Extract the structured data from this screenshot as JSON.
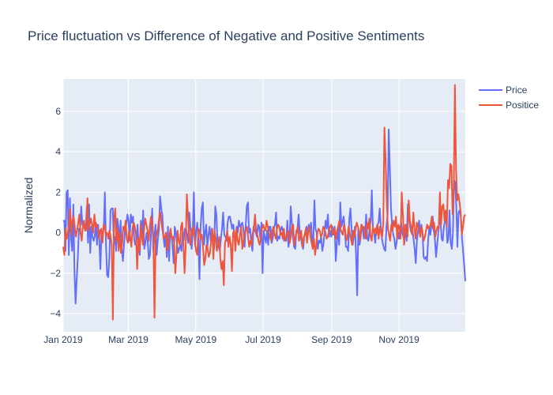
{
  "chart_data": {
    "type": "line",
    "title": "Price fluctuation vs Difference of Negative and Positive Sentiments",
    "xlabel": "",
    "ylabel": "Normalized",
    "x_start": "2019-01-01",
    "x_end": "2019-12-31",
    "xlim": [
      "2019-01-01",
      "2019-12-31"
    ],
    "ylim": [
      -4.9,
      7.6
    ],
    "x_ticks": [
      {
        "date": "2019-01-01",
        "label": "Jan 2019"
      },
      {
        "date": "2019-03-01",
        "label": "Mar 2019"
      },
      {
        "date": "2019-05-01",
        "label": "May 2019"
      },
      {
        "date": "2019-07-01",
        "label": "Jul 2019"
      },
      {
        "date": "2019-09-01",
        "label": "Sep 2019"
      },
      {
        "date": "2019-11-01",
        "label": "Nov 2019"
      }
    ],
    "y_ticks": [
      -4,
      -2,
      0,
      2,
      4,
      6
    ],
    "y_tick_labels": [
      "−4",
      "−2",
      "0",
      "2",
      "4",
      "6"
    ],
    "grid": true,
    "legend_position": "top-right",
    "plot_background": "#e5ecf6",
    "series": [
      {
        "name": "Price",
        "color": "#636efa",
        "values": [
          0.55,
          0.6,
          -0.9,
          2.0,
          2.1,
          -1.1,
          1.7,
          -0.3,
          -0.9,
          1.4,
          -1.9,
          -3.5,
          -2.3,
          -1.2,
          0.2,
          0.1,
          1.3,
          0.4,
          0.5,
          0.2,
          0.1,
          1.3,
          -0.5,
          1.4,
          -1.0,
          0.3,
          -0.2,
          -0.4,
          -0.2,
          0.5,
          -0.6,
          0.4,
          -0.3,
          -1.8,
          0.0,
          -0.1,
          0.2,
          2.0,
          -0.6,
          -2.1,
          -2.2,
          -1.2,
          1.1,
          1.2,
          1.2,
          -0.6,
          -0.2,
          -0.9,
          0.7,
          0.3,
          -0.5,
          0.6,
          -0.8,
          -1.4,
          -0.6,
          0.2,
          0.4,
          0.9,
          0.6,
          -0.4,
          0.9,
          0.5,
          0.8,
          -0.3,
          -0.6,
          -0.5,
          0.4,
          -0.7,
          -1.1,
          0.6,
          -0.2,
          1.1,
          -0.8,
          -0.5,
          0.0,
          -0.4,
          -1.3,
          -1.1,
          0.0,
          1.2,
          -0.9,
          -0.2,
          0.4,
          -1.1,
          -0.3,
          0.1,
          1.8,
          1.2,
          0.9,
          -0.2,
          -0.7,
          0.0,
          -1.2,
          0.3,
          -1.4,
          0.1,
          -0.1,
          -0.6,
          -1.5,
          0.3,
          0.0,
          -0.5,
          -1.0,
          -0.8,
          -0.6,
          -0.9,
          0.0,
          -0.4,
          0.2,
          0.2,
          -0.1,
          -0.5,
          1.0,
          0.2,
          -0.8,
          0.0,
          2.0,
          -0.6,
          0.0,
          0.5,
          -0.3,
          -2.3,
          0.3,
          1.2,
          1.5,
          -0.6,
          0.0,
          0.4,
          -0.7,
          -0.1,
          0.3,
          -0.4,
          0.2,
          -0.2,
          -0.8,
          1.3,
          0.9,
          -0.5,
          -0.6,
          -0.9,
          -0.3,
          0.2,
          1.0,
          -0.1,
          -0.2,
          -0.4,
          0.5,
          0.8,
          0.8,
          0.5,
          0.2,
          0.4,
          -0.2,
          -0.4,
          0.3,
          0.0,
          0.6,
          0.3,
          0.4,
          0.5,
          0.2,
          -0.7,
          0.3,
          1.3,
          1.5,
          0.0,
          0.2,
          -0.5,
          -0.9,
          0.3,
          0.1,
          0.0,
          -0.2,
          0.4,
          0.3,
          -0.3,
          0.5,
          -2.0,
          0.1,
          -0.2,
          -0.5,
          0.1,
          -0.6,
          0.3,
          0.3,
          -0.5,
          -0.3,
          0.2,
          0.4,
          1.0,
          -0.4,
          -0.2,
          -0.3,
          0.1,
          0.3,
          0.1,
          -0.4,
          -0.2,
          -0.4,
          0.6,
          -0.7,
          -0.3,
          1.3,
          0.5,
          -0.2,
          -0.7,
          -0.8,
          0.1,
          0.2,
          0.9,
          0.0,
          -0.2,
          -0.6,
          -0.8,
          -0.2,
          0.0,
          0.3,
          -0.1,
          0.4,
          0.1,
          0.5,
          -0.3,
          -0.6,
          1.6,
          0.2,
          0.0,
          -0.8,
          -0.4,
          -0.5,
          -0.2,
          -0.9,
          -0.6,
          0.0,
          0.6,
          0.2,
          0.9,
          -0.2,
          0.1,
          -0.2,
          0.3,
          -0.1,
          0.3,
          -1.4,
          -0.5,
          0.3,
          -0.6,
          1.5,
          0.3,
          0.5,
          0.8,
          0.2,
          -0.7,
          -0.7,
          -0.9,
          0.7,
          1.2,
          0.2,
          -0.6,
          -0.2,
          0.3,
          -1.1,
          -3.1,
          0.2,
          -0.6,
          -0.3,
          0.4,
          0.1,
          -0.3,
          0.0,
          0.9,
          -0.3,
          -0.4,
          0.2,
          0.6,
          2.1,
          0.1,
          0.0,
          -0.5,
          0.2,
          0.4,
          0.5,
          1.2,
          0.3,
          -0.3,
          -0.6,
          -0.8,
          -0.9,
          0.3,
          0.9,
          5.1,
          3.2,
          1.2,
          0.4,
          -0.1,
          -0.3,
          -0.8,
          -0.5,
          0.1,
          -0.3,
          0.2,
          0.5,
          0.0,
          -0.2,
          -0.5,
          0.4,
          -0.4,
          1.4,
          1.1,
          0.3,
          0.0,
          0.2,
          -0.3,
          -0.8,
          -1.5,
          -0.4,
          0.1,
          0.6,
          -0.2,
          0.4,
          0.0,
          -1.2,
          -1.3,
          -1.2,
          -1.4,
          -0.4,
          0.3,
          -0.1,
          0.4,
          0.8,
          0.1,
          -0.3,
          -1.2,
          -0.6,
          0.0,
          0.7,
          0.5,
          -0.3,
          -0.4,
          0.3,
          0.6,
          0.9,
          -0.5,
          -0.3,
          1.1,
          -0.5,
          -0.8,
          0.0,
          2.6,
          2.5,
          1.3,
          -0.7,
          1.0,
          1.1,
          0.8,
          -0.2,
          -0.9,
          -1.6,
          -2.4
        ]
      },
      {
        "name": "Positice",
        "color": "#ef553b",
        "values": [
          -0.7,
          -1.1,
          0.2,
          -0.3,
          0.0,
          0.4,
          1.2,
          -0.1,
          0.6,
          0.8,
          0.3,
          -0.2,
          0.1,
          0.5,
          0.9,
          0.0,
          -0.4,
          0.3,
          0.6,
          0.1,
          0.2,
          1.7,
          0.1,
          0.4,
          0.7,
          0.4,
          0.0,
          0.9,
          0.3,
          0.4,
          0.2,
          -0.3,
          0.1,
          0.2,
          -0.5,
          0.4,
          0.3,
          -0.1,
          0.0,
          -0.3,
          0.1,
          -0.2,
          -0.6,
          -4.3,
          0.6,
          1.2,
          -0.4,
          0.2,
          -0.9,
          0.0,
          -1.0,
          -0.6,
          0.3,
          0.1,
          0.6,
          -0.3,
          -0.5,
          0.1,
          -0.2,
          -0.7,
          0.2,
          0.5,
          0.3,
          -0.1,
          -1.8,
          -0.3,
          -0.9,
          0.4,
          -0.2,
          -0.6,
          0.2,
          0.7,
          0.4,
          0.1,
          -0.4,
          0.3,
          0.8,
          0.5,
          -0.1,
          -4.2,
          -0.3,
          -0.1,
          0.2,
          0.7,
          1.0,
          0.5,
          0.1,
          -0.3,
          -0.2,
          0.0,
          -0.9,
          -0.6,
          -0.1,
          0.2,
          -0.3,
          -0.2,
          -0.5,
          -2.0,
          -1.1,
          0.1,
          -0.4,
          -0.6,
          0.3,
          0.5,
          -0.5,
          -2.0,
          -0.7,
          1.9,
          0.8,
          -0.3,
          -0.6,
          0.2,
          -0.1,
          0.3,
          -0.5,
          -0.9,
          -1.1,
          0.2,
          0.1,
          -0.3,
          -0.1,
          -0.7,
          -1.6,
          -1.3,
          -0.6,
          -0.8,
          -1.2,
          -1.0,
          -0.4,
          0.2,
          -1.3,
          0.1,
          -0.3,
          -0.9,
          -0.6,
          -0.2,
          -1.3,
          -1.8,
          -1.4,
          -2.6,
          -0.5,
          -0.3,
          0.1,
          -0.7,
          -0.2,
          -0.6,
          -1.9,
          0.0,
          0.1,
          -0.9,
          0.2,
          -0.4,
          -0.6,
          -0.1,
          0.3,
          -0.8,
          -0.4,
          0.0,
          0.1,
          0.3,
          -0.2,
          -0.7,
          -0.4,
          -0.6,
          0.0,
          0.2,
          0.9,
          0.0,
          -0.1,
          -0.4,
          -0.6,
          -0.3,
          0.2,
          0.4,
          0.2,
          0.1,
          0.6,
          0.3,
          0.0,
          -0.2,
          -0.4,
          0.1,
          0.3,
          -0.1,
          -0.3,
          0.2,
          0.4,
          0.3,
          -0.1,
          0.0,
          -0.3,
          0.2,
          -0.4,
          -0.2,
          0.0,
          0.1,
          -0.5,
          -0.2,
          0.3,
          0.4,
          -0.6,
          -0.2,
          0.0,
          0.3,
          -0.4,
          -0.2,
          0.1,
          -0.7,
          -0.3,
          -0.1,
          0.2,
          -0.5,
          0.0,
          0.3,
          -0.2,
          -0.5,
          -0.8,
          -0.3,
          -1.1,
          -0.6,
          0.0,
          0.2,
          0.1,
          -0.2,
          -0.1,
          0.3,
          0.2,
          0.0,
          -0.3,
          -0.2,
          0.1,
          0.3,
          0.4,
          -0.1,
          0.0,
          0.2,
          -0.3,
          0.1,
          0.3,
          0.6,
          0.2,
          0.0,
          -0.1,
          0.4,
          0.1,
          -0.4,
          -0.2,
          0.3,
          0.0,
          -0.3,
          -0.6,
          0.1,
          -0.2,
          0.2,
          0.5,
          0.3,
          0.1,
          -0.4,
          0.4,
          0.2,
          0.3,
          -0.1,
          -0.3,
          0.5,
          0.2,
          0.7,
          -0.2,
          -0.4,
          0.3,
          0.0,
          0.2,
          -0.1,
          0.4,
          -0.3,
          0.3,
          0.0,
          -0.2,
          0.4,
          5.2,
          3.6,
          1.6,
          0.2,
          -0.1,
          -0.4,
          0.4,
          0.1,
          0.6,
          0.3,
          0.8,
          -0.3,
          0.4,
          0.2,
          -0.3,
          2.0,
          0.9,
          -0.6,
          0.4,
          0.1,
          -0.2,
          1.6,
          0.6,
          0.3,
          -0.1,
          1.0,
          0.2,
          -0.3,
          0.5,
          0.3,
          0.1,
          -0.2,
          0.3,
          0.0,
          -0.4,
          -0.2,
          0.1,
          0.4,
          0.2,
          0.3,
          0.4,
          0.8,
          0.2,
          0.5,
          -0.2,
          0.1,
          0.3,
          0.2,
          2.0,
          0.4,
          1.3,
          1.4,
          0.6,
          1.1,
          0.3,
          2.6,
          2.2,
          3.4,
          3.3,
          0.9,
          2.2,
          7.3,
          3.1,
          1.6,
          1.9,
          1.5,
          1.0,
          -0.1,
          0.3,
          0.8,
          0.9
        ]
      }
    ]
  }
}
